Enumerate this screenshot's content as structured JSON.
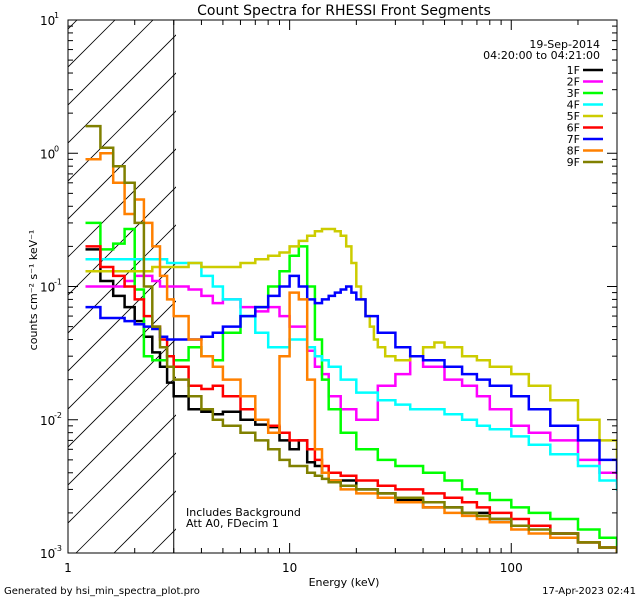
{
  "chart_data": {
    "type": "line",
    "title": "Count Spectra for RHESSI Front Segments",
    "xlabel": "Energy (keV)",
    "ylabel": "counts cm⁻² s⁻¹ keV⁻¹",
    "xscale": "log",
    "yscale": "log",
    "xlim": [
      1,
      300
    ],
    "ylim": [
      0.001,
      10
    ],
    "x_ticks": [
      {
        "value": 1,
        "label": "1"
      },
      {
        "value": 10,
        "label": "10"
      },
      {
        "value": 100,
        "label": "100"
      }
    ],
    "y_ticks": [
      {
        "value": 10,
        "label": "10",
        "exp": "1"
      },
      {
        "value": 1,
        "label": "10",
        "exp": "0"
      },
      {
        "value": 0.1,
        "label": "10",
        "exp": "-1"
      },
      {
        "value": 0.01,
        "label": "10",
        "exp": "-2"
      },
      {
        "value": 0.001,
        "label": "10",
        "exp": "-3"
      }
    ],
    "hatched_region_kev": [
      1,
      3
    ],
    "date": "19-Sep-2014",
    "time_range": "04:20:00 to 04:21:00",
    "notes": [
      "Includes Background",
      "Att A0, FDecim 1"
    ],
    "series": [
      {
        "name": "1F",
        "color": "#000000",
        "x": [
          1.2,
          1.4,
          1.6,
          1.8,
          2,
          2.2,
          2.4,
          2.6,
          2.8,
          3,
          3.5,
          4,
          4.5,
          5,
          6,
          7,
          8,
          9,
          10,
          11,
          12,
          13,
          14,
          15,
          17,
          20,
          25,
          30,
          40,
          50,
          60,
          70,
          80,
          100,
          120,
          150,
          200,
          250,
          300
        ],
        "y": [
          0.19,
          0.11,
          0.085,
          0.07,
          0.055,
          0.042,
          0.032,
          0.025,
          0.019,
          0.015,
          0.012,
          0.0115,
          0.011,
          0.0115,
          0.01,
          0.0092,
          0.0088,
          0.007,
          0.006,
          0.007,
          0.0048,
          0.0045,
          0.004,
          0.0035,
          0.0035,
          0.003,
          0.0028,
          0.0025,
          0.0022,
          0.0022,
          0.002,
          0.002,
          0.0018,
          0.0016,
          0.0016,
          0.0014,
          0.0012,
          0.0011,
          0.001
        ]
      },
      {
        "name": "2F",
        "color": "#ff00ff",
        "x": [
          1.2,
          1.4,
          1.6,
          1.8,
          2,
          2.2,
          2.4,
          2.6,
          2.8,
          3,
          3.5,
          4,
          4.5,
          5,
          6,
          7,
          8,
          9,
          10,
          11,
          12,
          13,
          14,
          15,
          17,
          20,
          25,
          30,
          35,
          40,
          50,
          60,
          70,
          80,
          100,
          120,
          150,
          200,
          250,
          300
        ],
        "y": [
          0.1,
          0.1,
          0.1,
          0.11,
          0.12,
          0.12,
          0.11,
          0.1,
          0.1,
          0.1,
          0.095,
          0.085,
          0.075,
          0.08,
          0.07,
          0.065,
          0.07,
          0.06,
          0.05,
          0.05,
          0.033,
          0.025,
          0.022,
          0.015,
          0.012,
          0.01,
          0.018,
          0.022,
          0.03,
          0.025,
          0.02,
          0.018,
          0.015,
          0.012,
          0.009,
          0.008,
          0.007,
          0.005,
          0.004,
          0.0033
        ]
      },
      {
        "name": "3F",
        "color": "#00ff00",
        "x": [
          1.2,
          1.4,
          1.6,
          1.8,
          2,
          2.2,
          2.4,
          2.6,
          2.8,
          3,
          3.5,
          4,
          4.5,
          5,
          6,
          7,
          8,
          9,
          10,
          11,
          12,
          13,
          14,
          15,
          17,
          20,
          25,
          30,
          40,
          50,
          60,
          70,
          80,
          100,
          120,
          150,
          200,
          250,
          300
        ],
        "y": [
          0.3,
          0.19,
          0.21,
          0.27,
          0.095,
          0.03,
          0.028,
          0.028,
          0.03,
          0.028,
          0.035,
          0.03,
          0.028,
          0.045,
          0.06,
          0.07,
          0.1,
          0.13,
          0.17,
          0.2,
          0.1,
          0.04,
          0.02,
          0.012,
          0.008,
          0.006,
          0.005,
          0.0045,
          0.004,
          0.0035,
          0.003,
          0.0028,
          0.0025,
          0.0022,
          0.002,
          0.0018,
          0.0015,
          0.0013,
          0.0011
        ]
      },
      {
        "name": "4F",
        "color": "#00ffff",
        "x": [
          1.2,
          1.4,
          1.6,
          1.8,
          2,
          2.2,
          2.4,
          2.6,
          2.8,
          3,
          3.5,
          4,
          4.5,
          5,
          6,
          7,
          8,
          9,
          10,
          11,
          12,
          13,
          14,
          15,
          17,
          20,
          25,
          30,
          35,
          40,
          50,
          60,
          70,
          80,
          100,
          120,
          150,
          200,
          250,
          300
        ],
        "y": [
          0.16,
          0.16,
          0.16,
          0.16,
          0.16,
          0.16,
          0.16,
          0.16,
          0.15,
          0.15,
          0.15,
          0.12,
          0.1,
          0.08,
          0.06,
          0.045,
          0.035,
          0.035,
          0.04,
          0.04,
          0.035,
          0.03,
          0.028,
          0.025,
          0.02,
          0.016,
          0.014,
          0.013,
          0.012,
          0.012,
          0.011,
          0.01,
          0.009,
          0.0085,
          0.0075,
          0.0065,
          0.0055,
          0.0045,
          0.0035,
          0.003
        ]
      },
      {
        "name": "5F",
        "color": "#cccc00",
        "x": [
          1.2,
          1.4,
          1.6,
          1.8,
          2,
          2.2,
          2.4,
          2.6,
          2.8,
          3,
          3.5,
          4,
          5,
          6,
          7,
          8,
          9,
          10,
          11,
          12,
          13,
          14,
          15,
          16,
          17,
          18,
          19,
          20,
          21,
          22,
          23,
          24,
          25,
          27,
          30,
          35,
          40,
          45,
          50,
          60,
          70,
          80,
          100,
          120,
          150,
          200,
          250,
          300
        ],
        "y": [
          0.13,
          0.13,
          0.13,
          0.13,
          0.13,
          0.13,
          0.14,
          0.14,
          0.14,
          0.14,
          0.15,
          0.14,
          0.14,
          0.15,
          0.16,
          0.17,
          0.18,
          0.2,
          0.22,
          0.24,
          0.26,
          0.27,
          0.27,
          0.26,
          0.24,
          0.2,
          0.15,
          0.1,
          0.08,
          0.06,
          0.05,
          0.04,
          0.035,
          0.03,
          0.028,
          0.03,
          0.035,
          0.038,
          0.035,
          0.03,
          0.028,
          0.025,
          0.022,
          0.018,
          0.014,
          0.01,
          0.007,
          0.005
        ]
      },
      {
        "name": "6F",
        "color": "#ff0000",
        "x": [
          1.2,
          1.4,
          1.6,
          1.8,
          2,
          2.2,
          2.4,
          2.6,
          2.8,
          3,
          3.5,
          4,
          4.5,
          5,
          6,
          7,
          8,
          9,
          10,
          11,
          12,
          13,
          14,
          15,
          17,
          20,
          25,
          30,
          40,
          50,
          60,
          70,
          80,
          100,
          120,
          150,
          200,
          250,
          300
        ],
        "y": [
          0.2,
          0.14,
          0.12,
          0.1,
          0.08,
          0.06,
          0.05,
          0.04,
          0.03,
          0.025,
          0.018,
          0.017,
          0.018,
          0.015,
          0.012,
          0.01,
          0.009,
          0.008,
          0.007,
          0.007,
          0.006,
          0.005,
          0.0045,
          0.004,
          0.0038,
          0.0035,
          0.0032,
          0.003,
          0.0028,
          0.0026,
          0.0024,
          0.0022,
          0.002,
          0.0018,
          0.0016,
          0.0014,
          0.0012,
          0.0011,
          0.001
        ]
      },
      {
        "name": "7F",
        "color": "#0000ff",
        "x": [
          1.2,
          1.4,
          1.6,
          1.8,
          2,
          2.2,
          2.4,
          2.6,
          2.8,
          3,
          3.5,
          4,
          4.5,
          5,
          6,
          7,
          8,
          9,
          10,
          11,
          12,
          13,
          14,
          15,
          16,
          17,
          18,
          19,
          20,
          22,
          25,
          30,
          35,
          40,
          50,
          60,
          70,
          80,
          100,
          120,
          150,
          200,
          250,
          300
        ],
        "y": [
          0.07,
          0.058,
          0.058,
          0.055,
          0.052,
          0.05,
          0.048,
          0.042,
          0.04,
          0.04,
          0.04,
          0.042,
          0.045,
          0.05,
          0.06,
          0.07,
          0.085,
          0.1,
          0.12,
          0.1,
          0.08,
          0.075,
          0.08,
          0.085,
          0.09,
          0.095,
          0.1,
          0.09,
          0.08,
          0.06,
          0.045,
          0.035,
          0.03,
          0.028,
          0.025,
          0.022,
          0.02,
          0.018,
          0.015,
          0.012,
          0.009,
          0.007,
          0.005,
          0.004
        ]
      },
      {
        "name": "8F",
        "color": "#ff8000",
        "x": [
          1.2,
          1.4,
          1.6,
          1.8,
          2,
          2.2,
          2.4,
          2.6,
          2.8,
          3,
          3.5,
          4,
          4.5,
          5,
          6,
          7,
          8,
          9,
          10,
          11,
          12,
          13,
          14,
          15,
          17,
          20,
          25,
          30,
          40,
          50,
          60,
          70,
          80,
          100,
          120,
          150,
          200,
          250,
          300
        ],
        "y": [
          0.9,
          1.0,
          0.6,
          0.35,
          0.45,
          0.3,
          0.2,
          0.12,
          0.08,
          0.06,
          0.04,
          0.03,
          0.025,
          0.02,
          0.015,
          0.01,
          0.008,
          0.03,
          0.09,
          0.08,
          0.02,
          0.006,
          0.004,
          0.0035,
          0.003,
          0.0028,
          0.0026,
          0.0024,
          0.0022,
          0.002,
          0.0019,
          0.0018,
          0.0017,
          0.0015,
          0.0014,
          0.0013,
          0.0012,
          0.0011,
          0.001
        ]
      },
      {
        "name": "9F",
        "color": "#808000",
        "x": [
          1.2,
          1.4,
          1.6,
          1.8,
          2,
          2.2,
          2.4,
          2.6,
          2.8,
          3,
          3.5,
          4,
          4.5,
          5,
          6,
          7,
          8,
          9,
          10,
          11,
          12,
          13,
          14,
          15,
          17,
          20,
          25,
          30,
          40,
          50,
          60,
          70,
          80,
          100,
          120,
          150,
          200,
          250,
          300
        ],
        "y": [
          1.6,
          1.1,
          0.8,
          0.6,
          0.3,
          0.1,
          0.05,
          0.035,
          0.025,
          0.02,
          0.015,
          0.012,
          0.01,
          0.009,
          0.008,
          0.007,
          0.006,
          0.005,
          0.0045,
          0.0045,
          0.004,
          0.0038,
          0.0036,
          0.0034,
          0.0032,
          0.003,
          0.0028,
          0.0026,
          0.0024,
          0.0022,
          0.002,
          0.0019,
          0.0018,
          0.0016,
          0.0015,
          0.0014,
          0.0012,
          0.0011,
          0.001
        ]
      }
    ]
  },
  "footer": {
    "generated_by": "Generated by hsi_min_spectra_plot.pro",
    "timestamp": "17-Apr-2023 02:41"
  }
}
